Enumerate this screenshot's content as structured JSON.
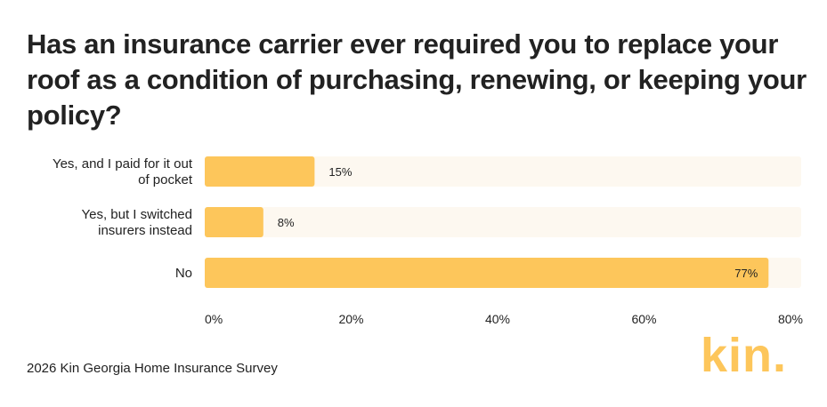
{
  "title": "Has an insurance carrier ever required you to replace your roof as a condition of purchasing, renewing, or keeping your policy?",
  "source": "2026 Kin Georgia Home Insurance Survey",
  "logo_text": "kin.",
  "colors": {
    "bar": "#fdc65b",
    "track": "#fdf8f0",
    "logo": "#fdc65b",
    "text": "#222222"
  },
  "chart_data": {
    "type": "bar",
    "orientation": "horizontal",
    "categories": [
      [
        "Yes, and I paid for it out",
        "of pocket"
      ],
      [
        "Yes, but I switched",
        "insurers instead"
      ],
      [
        "No"
      ]
    ],
    "values": [
      15,
      8,
      77
    ],
    "value_labels": [
      "15%",
      "8%",
      "77%"
    ],
    "xlim": [
      0,
      80
    ],
    "xticks": [
      0,
      20,
      40,
      60,
      80
    ],
    "xtick_labels": [
      "0%",
      "20%",
      "40%",
      "60%",
      "80%"
    ],
    "xlabel": "",
    "ylabel": "",
    "grid": false
  }
}
